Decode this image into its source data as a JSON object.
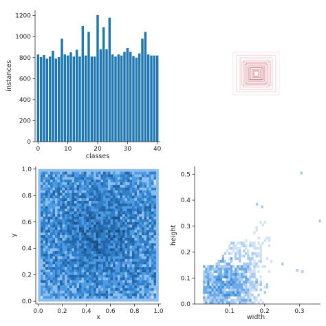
{
  "chart_data": [
    {
      "type": "bar",
      "xlabel": "classes",
      "ylabel": "instances",
      "x_ticks": [
        0,
        10,
        20,
        30,
        40
      ],
      "y_ticks": [
        0,
        200,
        400,
        600,
        800,
        1000,
        1200
      ],
      "xlim": [
        -1,
        41
      ],
      "ylim": [
        0,
        1250
      ],
      "color": "#1f77b4",
      "categories": [
        0,
        1,
        2,
        3,
        4,
        5,
        6,
        7,
        8,
        9,
        10,
        11,
        12,
        13,
        14,
        15,
        16,
        17,
        18,
        19,
        20,
        21,
        22,
        23,
        24,
        25,
        26,
        27,
        28,
        29,
        30,
        31,
        32,
        33,
        34,
        35,
        36,
        37,
        38,
        39,
        40
      ],
      "values": [
        830,
        805,
        825,
        790,
        810,
        865,
        790,
        805,
        980,
        830,
        820,
        850,
        810,
        875,
        810,
        1100,
        820,
        1045,
        810,
        810,
        1205,
        880,
        1090,
        880,
        1180,
        830,
        810,
        830,
        820,
        855,
        890,
        855,
        815,
        800,
        840,
        980,
        1045,
        830,
        820,
        820,
        820
      ]
    },
    {
      "type": "boxes",
      "description_color": "#c0283a",
      "xlim": [
        0,
        1
      ],
      "ylim": [
        0,
        1
      ],
      "boxes": [
        {
          "w": 0.95,
          "h": 0.95,
          "o": 0.25
        },
        {
          "w": 0.78,
          "h": 0.82,
          "o": 0.3
        },
        {
          "w": 0.7,
          "h": 0.6,
          "o": 0.35
        },
        {
          "w": 0.62,
          "h": 0.7,
          "o": 0.35
        },
        {
          "w": 0.55,
          "h": 0.5,
          "o": 0.45
        },
        {
          "w": 0.48,
          "h": 0.55,
          "o": 0.45
        },
        {
          "w": 0.4,
          "h": 0.4,
          "o": 0.55
        },
        {
          "w": 0.35,
          "h": 0.3,
          "o": 0.6
        },
        {
          "w": 0.28,
          "h": 0.32,
          "o": 0.6
        },
        {
          "w": 0.2,
          "h": 0.2,
          "o": 0.7
        },
        {
          "w": 0.12,
          "h": 0.14,
          "o": 0.8
        }
      ]
    },
    {
      "type": "heatmap",
      "xlabel": "x",
      "ylabel": "y",
      "x_ticks": [
        0.0,
        0.2,
        0.4,
        0.6,
        0.8,
        1.0
      ],
      "y_ticks": [
        0.0,
        0.2,
        0.4,
        0.6,
        0.8,
        1.0
      ],
      "xlim": [
        -0.02,
        1.02
      ],
      "ylim": [
        -0.02,
        1.02
      ],
      "bins": 50,
      "palette": [
        "#cfe2f7",
        "#8cbeef",
        "#4d9be3",
        "#2f7fc9",
        "#2467a8",
        "#1f4e80",
        "#1c3a5f"
      ],
      "description": "dense 2D histogram of box centers, darker near center"
    },
    {
      "type": "heatmap",
      "xlabel": "width",
      "ylabel": "height",
      "x_ticks": [
        0.1,
        0.2,
        0.3
      ],
      "y_ticks": [
        0.0,
        0.1,
        0.2,
        0.3,
        0.4,
        0.5
      ],
      "xlim": [
        0.0,
        0.36
      ],
      "ylim": [
        0.0,
        0.53
      ],
      "palette": [
        "#cfe2f7",
        "#a9ccf1",
        "#6eaae8",
        "#3d8fd9",
        "#2a6cb0",
        "#1c3a5f"
      ],
      "description": "2D histogram of box width vs height"
    }
  ]
}
